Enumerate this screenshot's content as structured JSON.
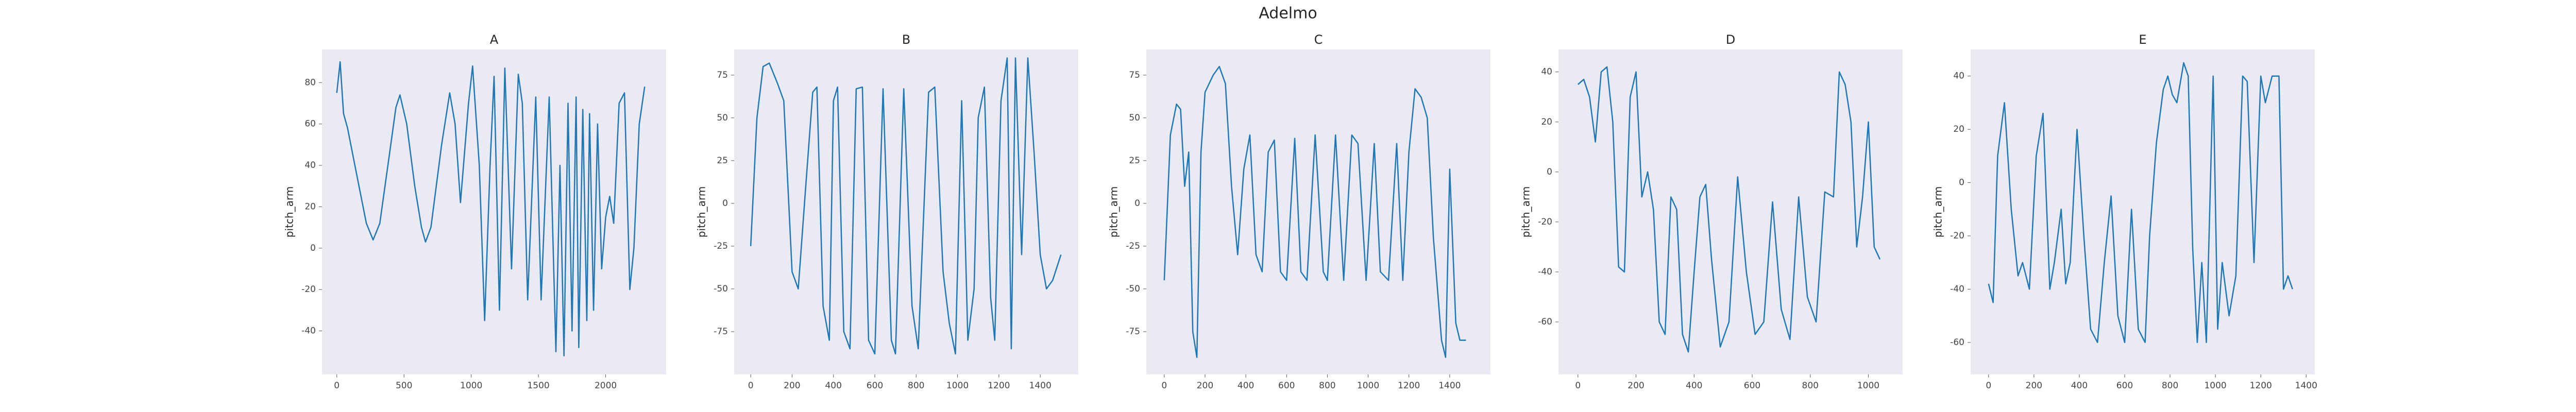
{
  "title": "Adelmo",
  "chart_data": [
    {
      "type": "line",
      "title": "A",
      "ylabel": "pitch_arm",
      "color": "#1f77b4",
      "grid": false,
      "xlim": [
        -110,
        2450
      ],
      "xticks": [
        0,
        500,
        1000,
        1500,
        2000
      ],
      "ylim": [
        -61,
        96
      ],
      "yticks": [
        -40,
        -20,
        0,
        20,
        40,
        60,
        80
      ],
      "x": [
        0,
        25,
        50,
        80,
        150,
        220,
        270,
        320,
        380,
        440,
        470,
        520,
        580,
        630,
        660,
        700,
        780,
        840,
        880,
        920,
        980,
        1010,
        1060,
        1100,
        1140,
        1170,
        1210,
        1250,
        1300,
        1350,
        1380,
        1420,
        1480,
        1520,
        1580,
        1630,
        1660,
        1690,
        1720,
        1750,
        1780,
        1800,
        1830,
        1860,
        1880,
        1910,
        1940,
        1970,
        2000,
        2030,
        2060,
        2100,
        2140,
        2180,
        2210,
        2250,
        2290
      ],
      "values": [
        75,
        90,
        65,
        58,
        35,
        12,
        4,
        12,
        40,
        68,
        74,
        60,
        30,
        10,
        3,
        10,
        50,
        75,
        60,
        22,
        70,
        88,
        40,
        -35,
        40,
        83,
        -30,
        87,
        -10,
        84,
        70,
        -25,
        73,
        -25,
        73,
        -50,
        40,
        -52,
        70,
        -40,
        73,
        -48,
        67,
        -35,
        65,
        -30,
        60,
        -10,
        15,
        25,
        12,
        70,
        75,
        -20,
        0,
        60,
        78
      ]
    },
    {
      "type": "line",
      "title": "B",
      "ylabel": "pitch_arm",
      "color": "#1f77b4",
      "grid": false,
      "xlim": [
        -80,
        1584
      ],
      "xticks": [
        0,
        200,
        400,
        600,
        800,
        1000,
        1200,
        1400
      ],
      "ylim": [
        -100,
        90
      ],
      "yticks": [
        -75,
        -50,
        -25,
        0,
        25,
        50,
        75
      ],
      "x": [
        0,
        30,
        60,
        90,
        130,
        160,
        200,
        230,
        260,
        300,
        320,
        350,
        380,
        400,
        420,
        450,
        480,
        510,
        540,
        570,
        600,
        640,
        680,
        700,
        740,
        780,
        810,
        860,
        890,
        930,
        960,
        990,
        1020,
        1050,
        1080,
        1100,
        1130,
        1160,
        1180,
        1210,
        1240,
        1260,
        1280,
        1310,
        1340,
        1370,
        1400,
        1430,
        1460,
        1500
      ],
      "values": [
        -25,
        50,
        80,
        82,
        70,
        60,
        -40,
        -50,
        0,
        65,
        68,
        -60,
        -80,
        60,
        68,
        -75,
        -85,
        67,
        68,
        -80,
        -88,
        67,
        -80,
        -88,
        67,
        -60,
        -85,
        65,
        68,
        -40,
        -70,
        -88,
        60,
        -80,
        -50,
        50,
        68,
        -55,
        -80,
        60,
        85,
        -85,
        85,
        -30,
        85,
        30,
        -30,
        -50,
        -45,
        -30
      ]
    },
    {
      "type": "line",
      "title": "C",
      "ylabel": "pitch_arm",
      "color": "#1f77b4",
      "grid": false,
      "xlim": [
        -88,
        1600
      ],
      "xticks": [
        0,
        200,
        400,
        600,
        800,
        1000,
        1200,
        1400
      ],
      "ylim": [
        -100,
        90
      ],
      "yticks": [
        -75,
        -50,
        -25,
        0,
        25,
        50,
        75
      ],
      "x": [
        0,
        30,
        60,
        80,
        100,
        120,
        140,
        160,
        180,
        200,
        240,
        270,
        300,
        330,
        360,
        390,
        420,
        450,
        480,
        510,
        540,
        570,
        600,
        640,
        670,
        700,
        740,
        780,
        800,
        840,
        880,
        920,
        950,
        990,
        1030,
        1060,
        1100,
        1140,
        1170,
        1200,
        1230,
        1260,
        1290,
        1320,
        1340,
        1360,
        1380,
        1400,
        1430,
        1450,
        1480
      ],
      "values": [
        -45,
        40,
        58,
        55,
        10,
        30,
        -75,
        -90,
        30,
        65,
        75,
        80,
        70,
        10,
        -30,
        20,
        40,
        -30,
        -40,
        30,
        37,
        -40,
        -45,
        38,
        -40,
        -45,
        40,
        -40,
        -45,
        40,
        -45,
        40,
        35,
        -45,
        35,
        -40,
        -45,
        35,
        -45,
        30,
        67,
        62,
        50,
        -20,
        -50,
        -80,
        -90,
        20,
        -70,
        -80,
        -80
      ]
    },
    {
      "type": "line",
      "title": "D",
      "ylabel": "pitch_arm",
      "color": "#1f77b4",
      "grid": false,
      "xlim": [
        -67,
        1118
      ],
      "xticks": [
        0,
        200,
        400,
        600,
        800,
        1000
      ],
      "ylim": [
        -81,
        49
      ],
      "yticks": [
        -60,
        -40,
        -20,
        0,
        20,
        40
      ],
      "x": [
        0,
        20,
        40,
        60,
        80,
        100,
        120,
        140,
        160,
        180,
        200,
        220,
        240,
        260,
        280,
        300,
        320,
        340,
        360,
        380,
        400,
        420,
        440,
        460,
        490,
        520,
        550,
        580,
        610,
        640,
        670,
        700,
        730,
        760,
        790,
        820,
        850,
        880,
        900,
        920,
        940,
        960,
        980,
        1000,
        1020,
        1040
      ],
      "values": [
        35,
        37,
        30,
        12,
        40,
        42,
        20,
        -38,
        -40,
        30,
        40,
        -10,
        0,
        -15,
        -60,
        -65,
        -10,
        -15,
        -65,
        -72,
        -40,
        -10,
        -5,
        -35,
        -70,
        -60,
        -2,
        -40,
        -65,
        -60,
        -12,
        -55,
        -67,
        -10,
        -50,
        -60,
        -8,
        -10,
        40,
        35,
        20,
        -30,
        -10,
        20,
        -30,
        -35
      ]
    },
    {
      "type": "line",
      "title": "E",
      "ylabel": "pitch_arm",
      "color": "#1f77b4",
      "grid": false,
      "xlim": [
        -79,
        1438
      ],
      "xticks": [
        0,
        200,
        400,
        600,
        800,
        1000,
        1200,
        1400
      ],
      "ylim": [
        -72,
        50
      ],
      "yticks": [
        -60,
        -40,
        -20,
        0,
        20,
        40
      ],
      "x": [
        0,
        20,
        40,
        70,
        100,
        130,
        150,
        180,
        210,
        240,
        270,
        290,
        320,
        340,
        360,
        390,
        420,
        450,
        480,
        510,
        540,
        570,
        600,
        630,
        660,
        690,
        710,
        740,
        770,
        790,
        810,
        830,
        860,
        880,
        900,
        920,
        940,
        960,
        990,
        1010,
        1030,
        1060,
        1090,
        1120,
        1140,
        1170,
        1200,
        1220,
        1250,
        1280,
        1300,
        1320,
        1340
      ],
      "values": [
        -38,
        -45,
        10,
        30,
        -10,
        -35,
        -30,
        -40,
        10,
        26,
        -40,
        -30,
        -10,
        -38,
        -30,
        20,
        -20,
        -55,
        -60,
        -30,
        -5,
        -50,
        -60,
        -10,
        -55,
        -60,
        -20,
        15,
        35,
        40,
        33,
        30,
        45,
        40,
        -25,
        -60,
        -30,
        -60,
        40,
        -55,
        -30,
        -50,
        -35,
        40,
        38,
        -30,
        40,
        30,
        40,
        40,
        -40,
        -35,
        -40
      ]
    }
  ]
}
